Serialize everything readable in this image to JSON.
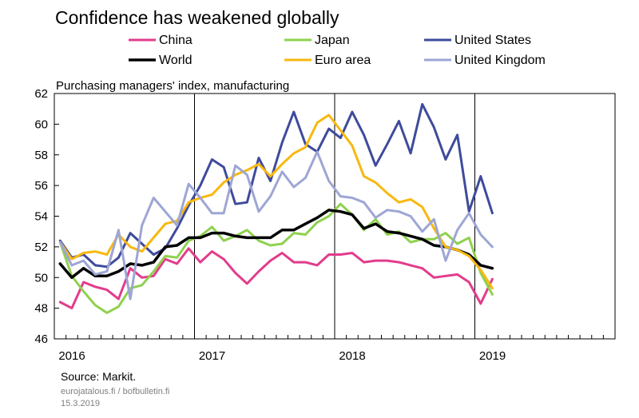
{
  "chart_data": {
    "type": "line",
    "title": "Confidence has weakened globally",
    "ylabel": "Purchasing managers' index, manufacturing",
    "ylim": [
      46,
      62
    ],
    "yticks": [
      "46",
      "48",
      "50",
      "52",
      "54",
      "56",
      "58",
      "60",
      "62"
    ],
    "xticks": [
      "2016",
      "2017",
      "2018",
      "2019"
    ],
    "x_start": "2016-01",
    "x_end": "2019-12",
    "legend_position": "top",
    "grid": "vertical lines at year boundaries",
    "series": [
      {
        "name": "China",
        "color": "#e23c8c",
        "width": 3,
        "values": [
          48.4,
          48.0,
          49.7,
          49.4,
          49.2,
          48.6,
          50.6,
          50.0,
          50.1,
          51.2,
          50.9,
          51.9,
          51.0,
          51.7,
          51.2,
          50.3,
          49.6,
          50.4,
          51.1,
          51.6,
          51.0,
          51.0,
          50.8,
          51.5,
          51.5,
          51.6,
          51.0,
          51.1,
          51.1,
          51.0,
          50.8,
          50.6,
          50.0,
          50.1,
          50.2,
          49.7,
          48.3,
          49.9
        ]
      },
      {
        "name": "Japan",
        "color": "#8fd14f",
        "width": 3,
        "values": [
          52.3,
          50.1,
          49.1,
          48.2,
          47.7,
          48.1,
          49.3,
          49.5,
          50.4,
          51.4,
          51.3,
          52.4,
          52.7,
          53.3,
          52.4,
          52.7,
          53.1,
          52.4,
          52.1,
          52.2,
          52.9,
          52.8,
          53.6,
          54.0,
          54.8,
          54.1,
          53.1,
          53.8,
          52.8,
          53.0,
          52.3,
          52.5,
          52.5,
          52.9,
          52.2,
          52.6,
          50.3,
          48.9
        ]
      },
      {
        "name": "United States",
        "color": "#3e4b9c",
        "width": 3,
        "values": [
          52.4,
          51.3,
          51.5,
          50.8,
          50.7,
          51.3,
          52.9,
          52.2,
          51.5,
          51.9,
          53.2,
          54.7,
          56.0,
          57.7,
          57.2,
          54.8,
          54.9,
          57.8,
          56.3,
          58.8,
          60.8,
          58.7,
          58.2,
          59.7,
          59.1,
          60.8,
          59.3,
          57.3,
          58.7,
          60.2,
          58.1,
          61.3,
          59.8,
          57.7,
          59.3,
          54.3,
          56.6,
          54.2
        ]
      },
      {
        "name": "World",
        "color": "#000000",
        "width": 3.5,
        "values": [
          50.9,
          50.0,
          50.6,
          50.1,
          50.1,
          50.4,
          50.9,
          50.8,
          51.0,
          52.0,
          52.1,
          52.6,
          52.6,
          52.9,
          52.9,
          52.7,
          52.6,
          52.6,
          52.6,
          53.1,
          53.1,
          53.5,
          53.9,
          54.4,
          54.3,
          54.1,
          53.2,
          53.5,
          53.0,
          52.9,
          52.7,
          52.5,
          52.1,
          52.0,
          51.8,
          51.5,
          50.8,
          50.6
        ]
      },
      {
        "name": "Euro area",
        "color": "#f7b810",
        "width": 3,
        "values": [
          52.3,
          51.2,
          51.6,
          51.7,
          51.5,
          52.8,
          52.0,
          51.7,
          52.6,
          53.5,
          53.7,
          54.9,
          55.2,
          55.4,
          56.2,
          56.7,
          57.0,
          57.4,
          56.6,
          57.4,
          58.1,
          58.5,
          60.1,
          60.6,
          59.6,
          58.6,
          56.6,
          56.2,
          55.5,
          54.9,
          55.1,
          54.6,
          53.2,
          52.0,
          51.8,
          51.4,
          50.5,
          49.3
        ]
      },
      {
        "name": "United Kingdom",
        "color": "#9da6d4",
        "width": 3,
        "values": [
          52.3,
          50.8,
          51.1,
          50.2,
          50.4,
          53.1,
          48.6,
          53.4,
          55.2,
          54.3,
          53.4,
          56.1,
          55.2,
          54.2,
          54.2,
          57.3,
          56.7,
          54.3,
          55.3,
          56.9,
          55.9,
          56.5,
          58.2,
          56.3,
          55.3,
          55.2,
          54.9,
          53.9,
          54.4,
          54.3,
          54.0,
          53.0,
          53.8,
          51.1,
          53.1,
          54.2,
          52.8,
          52.0
        ]
      }
    ]
  },
  "footer": {
    "source": "Source: Markit.",
    "site": "eurojatalous.fi / bofbulletin.fi",
    "date": "15.3.2019"
  }
}
